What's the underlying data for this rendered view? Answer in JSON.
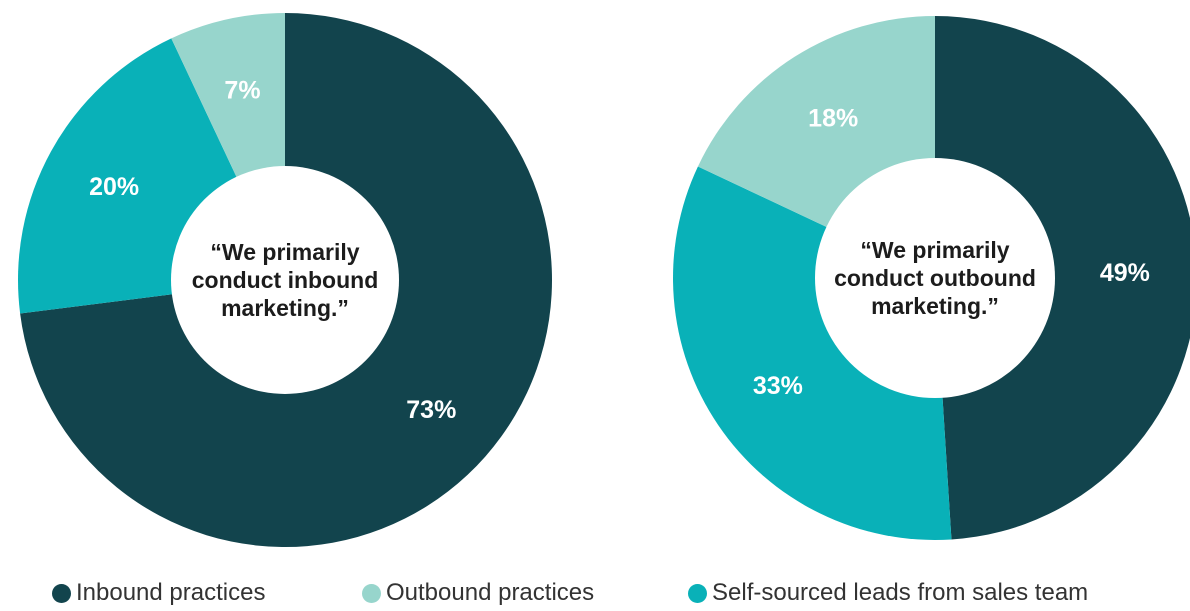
{
  "colors": {
    "inbound": "#12444d",
    "outbound": "#97d5cc",
    "self_sourced": "#09b1b8",
    "hole": "#ffffff"
  },
  "legend": [
    {
      "key": "inbound",
      "label": "Inbound practices"
    },
    {
      "key": "outbound",
      "label": "Outbound practices"
    },
    {
      "key": "self_sourced",
      "label": "Self-sourced leads from sales team"
    }
  ],
  "chart_data": [
    {
      "type": "pie",
      "donut": true,
      "center_text": [
        "“We primarily",
        "conduct inbound",
        "marketing.”"
      ],
      "slices": [
        {
          "category": "Inbound practices",
          "value": 73,
          "label": "73%"
        },
        {
          "category": "Self-sourced leads from sales team",
          "value": 20,
          "label": "20%"
        },
        {
          "category": "Outbound practices",
          "value": 7,
          "label": "7%"
        }
      ]
    },
    {
      "type": "pie",
      "donut": true,
      "center_text": [
        "“We primarily",
        "conduct outbound",
        "marketing.”"
      ],
      "slices": [
        {
          "category": "Inbound practices",
          "value": 49,
          "label": "49%"
        },
        {
          "category": "Self-sourced leads from sales team",
          "value": 33,
          "label": "33%"
        },
        {
          "category": "Outbound practices",
          "value": 18,
          "label": "18%"
        }
      ]
    }
  ]
}
